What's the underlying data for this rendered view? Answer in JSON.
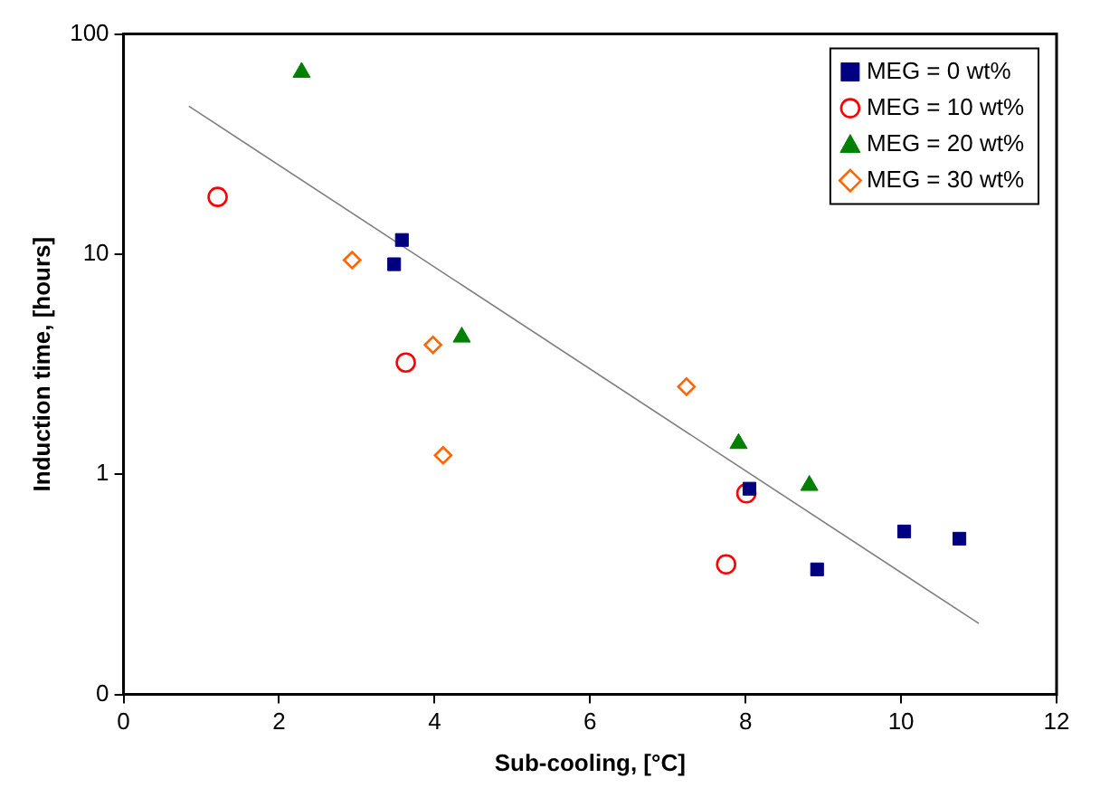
{
  "chart_data": {
    "type": "scatter",
    "xlabel": "Sub-cooling, [°C]",
    "ylabel": "Induction time, [hours]",
    "log": "y",
    "xlim": [
      0,
      12
    ],
    "xticks": [
      0,
      2,
      4,
      6,
      8,
      10,
      12
    ],
    "ylim": [
      0.1,
      100
    ],
    "yticks": [
      {
        "value": 0.1,
        "label": "0"
      },
      1,
      10,
      100
    ],
    "grid": false,
    "legend": "top right",
    "series": [
      {
        "name": "MEG = 0 wt%",
        "color": "#000080",
        "marker": "square",
        "x": [
          3.58,
          3.48,
          8.05,
          8.92,
          10.04,
          10.75
        ],
        "values": [
          11.6,
          9.0,
          0.86,
          0.37,
          0.55,
          0.51
        ]
      },
      {
        "name": "MEG = 10 wt%",
        "color": "#ff0000",
        "marker": "circle",
        "x": [
          1.21,
          3.63,
          8.01,
          7.75
        ],
        "values": [
          18.2,
          3.22,
          0.82,
          0.39
        ]
      },
      {
        "name": "MEG = 20 wt%",
        "color": "#008000",
        "marker": "triangle",
        "x": [
          2.29,
          4.35,
          7.91,
          8.82
        ],
        "values": [
          67,
          4.2,
          1.38,
          0.89
        ]
      },
      {
        "name": "MEG = 30 wt%",
        "color": "#ff6600",
        "marker": "diamond",
        "x": [
          2.94,
          3.98,
          4.11,
          7.24
        ],
        "values": [
          9.4,
          3.87,
          1.22,
          2.5
        ]
      },
      {
        "type": "line",
        "color": "#808080",
        "marker": "none",
        "x": [
          0.84,
          11.0
        ],
        "values": [
          47,
          0.21
        ]
      }
    ]
  }
}
